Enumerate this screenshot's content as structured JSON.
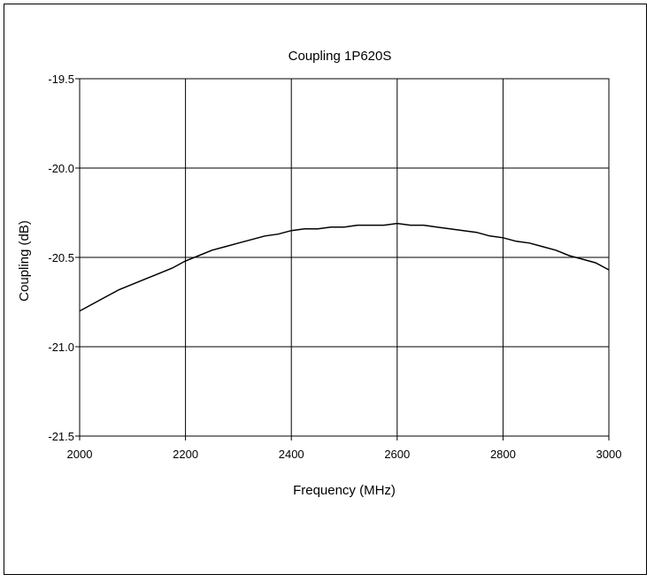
{
  "chart_data": {
    "type": "line",
    "title": "Coupling 1P620S",
    "xlabel": "Frequency (MHz)",
    "ylabel": "Coupling (dB)",
    "xlim": [
      2000,
      3000
    ],
    "ylim": [
      -21.5,
      -19.5
    ],
    "xticks": [
      2000,
      2200,
      2400,
      2600,
      2800,
      3000
    ],
    "yticks": [
      -19.5,
      -20.0,
      -20.5,
      -21.0,
      -21.5
    ],
    "xtick_labels": [
      "2000",
      "2200",
      "2400",
      "2600",
      "2800",
      "3000"
    ],
    "ytick_labels": [
      "-19.5",
      "-20.0",
      "-20.5",
      "-21.0",
      "-21.5"
    ],
    "grid": true,
    "legend": "none",
    "line_color": "#000000",
    "series": [
      {
        "x": [
          2000,
          2025,
          2050,
          2075,
          2100,
          2125,
          2150,
          2175,
          2200,
          2225,
          2250,
          2275,
          2300,
          2325,
          2350,
          2375,
          2400,
          2425,
          2450,
          2475,
          2500,
          2525,
          2550,
          2575,
          2600,
          2625,
          2650,
          2675,
          2700,
          2725,
          2750,
          2775,
          2800,
          2825,
          2850,
          2875,
          2900,
          2925,
          2950,
          2975,
          3000
        ],
        "y": [
          -20.8,
          -20.76,
          -20.72,
          -20.68,
          -20.65,
          -20.62,
          -20.59,
          -20.56,
          -20.52,
          -20.49,
          -20.46,
          -20.44,
          -20.42,
          -20.4,
          -20.38,
          -20.37,
          -20.35,
          -20.34,
          -20.34,
          -20.33,
          -20.33,
          -20.32,
          -20.32,
          -20.32,
          -20.31,
          -20.32,
          -20.32,
          -20.33,
          -20.34,
          -20.35,
          -20.36,
          -20.38,
          -20.39,
          -20.41,
          -20.42,
          -20.44,
          -20.46,
          -20.49,
          -20.51,
          -20.53,
          -20.57
        ]
      }
    ]
  }
}
